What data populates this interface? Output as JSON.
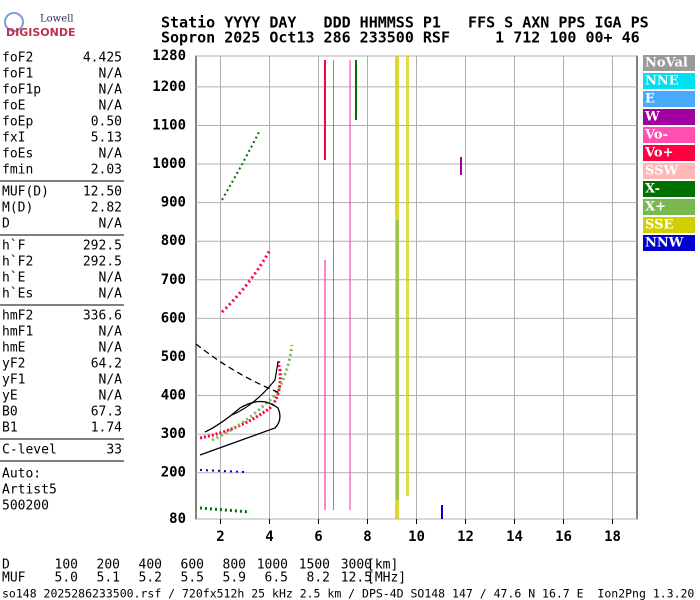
{
  "logo": {
    "top": "Lowell",
    "bottom": "DIGISONDE"
  },
  "header": {
    "line1": "Statio YYYY DAY   DDD HHMMSS P1   FFS S AXN PPS IGA PS",
    "line2": "Sopron 2025 Oct13 286 233500 RSF     1 712 100 00+ 46"
  },
  "params": [
    [
      {
        "name": "foF2",
        "value": "4.425"
      },
      {
        "name": "foF1",
        "value": "N/A"
      },
      {
        "name": "foF1p",
        "value": "N/A"
      },
      {
        "name": "foE",
        "value": "N/A"
      },
      {
        "name": "foEp",
        "value": "0.50"
      },
      {
        "name": "fxI",
        "value": "5.13"
      },
      {
        "name": "foEs",
        "value": "N/A"
      },
      {
        "name": "fmin",
        "value": "2.03"
      }
    ],
    [
      {
        "name": "MUF(D)",
        "value": "12.50"
      },
      {
        "name": "M(D)",
        "value": "2.82"
      },
      {
        "name": "D",
        "value": "N/A"
      }
    ],
    [
      {
        "name": "h`F",
        "value": "292.5"
      },
      {
        "name": "h`F2",
        "value": "292.5"
      },
      {
        "name": "h`E",
        "value": "N/A"
      },
      {
        "name": "h`Es",
        "value": "N/A"
      }
    ],
    [
      {
        "name": "hmF2",
        "value": "336.6"
      },
      {
        "name": "hmF1",
        "value": "N/A"
      },
      {
        "name": "hmE",
        "value": "N/A"
      },
      {
        "name": "yF2",
        "value": "64.2"
      },
      {
        "name": "yF1",
        "value": "N/A"
      },
      {
        "name": "yE",
        "value": "N/A"
      },
      {
        "name": "B0",
        "value": "67.3"
      },
      {
        "name": "B1",
        "value": "1.74"
      }
    ],
    [
      {
        "name": "C-level",
        "value": "33"
      }
    ]
  ],
  "autoscaling": [
    "Auto:",
    "Artist5",
    "500200"
  ],
  "legend": [
    {
      "label": "NoVal",
      "color": "#9a9a9a"
    },
    {
      "label": "NNE",
      "color": "#00e0f0"
    },
    {
      "label": "E",
      "color": "#4aa8ff"
    },
    {
      "label": "W",
      "color": "#a000a0"
    },
    {
      "label": "Vo-",
      "color": "#ff50b0"
    },
    {
      "label": "Vo+",
      "color": "#ff0040"
    },
    {
      "label": "SSW",
      "color": "#ffb8b8"
    },
    {
      "label": "X-",
      "color": "#007000"
    },
    {
      "label": "X+",
      "color": "#78b850"
    },
    {
      "label": "SSE",
      "color": "#d0d000"
    },
    {
      "label": "NNW",
      "color": "#0000d0"
    }
  ],
  "chart_data": {
    "type": "scatter",
    "xlim": [
      1,
      19
    ],
    "ylim": [
      80,
      1280
    ],
    "xticks": [
      2,
      4,
      6,
      8,
      10,
      12,
      14,
      16,
      18
    ],
    "yticks": [
      80,
      200,
      300,
      400,
      500,
      600,
      700,
      800,
      900,
      1000,
      1100,
      1200,
      1280
    ],
    "grid": true
  },
  "muf_table": [
    {
      "label": "D",
      "values": [
        "100",
        "200",
        "400",
        "600",
        "800",
        "1000",
        "1500",
        "3000"
      ],
      "unit": "[km]"
    },
    {
      "label": "MUF",
      "values": [
        "5.0",
        "5.1",
        "5.2",
        "5.5",
        "5.9",
        "6.5",
        "8.2",
        "12.5"
      ],
      "unit": "[MHz]"
    }
  ],
  "footer": "so148_2025286233500.rsf / 720fx512h 25 kHz 2.5 km / DPS-4D SO148 147 / 47.6 N 16.7 E  Ion2Png 1.3.20"
}
